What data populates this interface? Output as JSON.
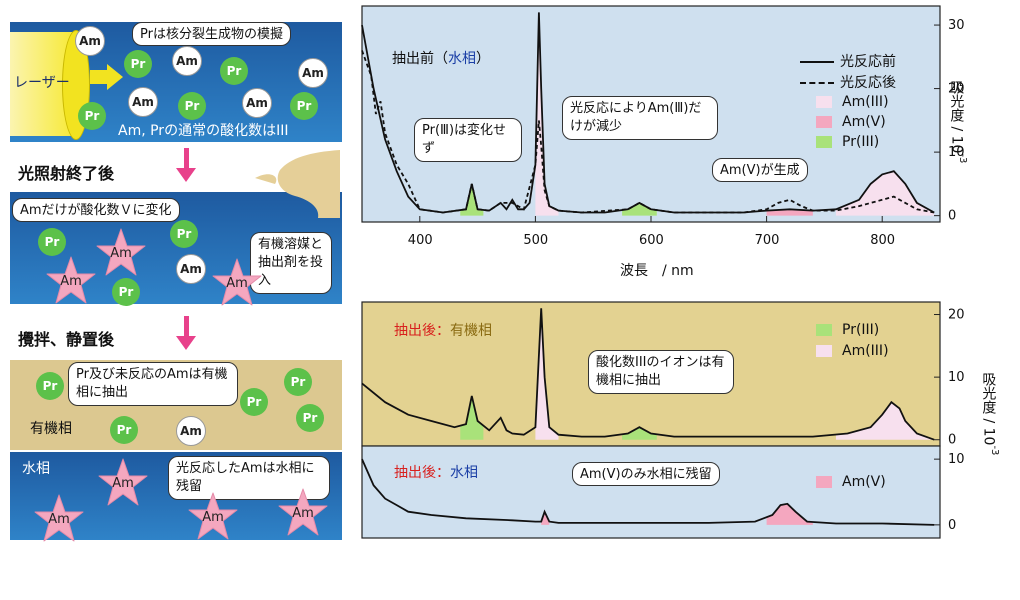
{
  "left": {
    "step1": {
      "laser_label": "レーザー",
      "note": "Prは核分裂生成物の模擬",
      "caption": "Am, Prの通常の酸化数はIII",
      "ions_pr": "Pr",
      "ions_am": "Am"
    },
    "step2": {
      "heading": "光照射終了後",
      "note": "Amだけが酸化数Ｖに変化",
      "solvent_note": "有機溶媒と抽出剤を投入"
    },
    "step3": {
      "heading": "攪拌、静置後",
      "organic_note": "Pr及び未反応のAmは有機相に抽出",
      "organic_label": "有機相",
      "aqueous_label": "水相",
      "aqueous_note": "光反応したAmは水相に残留"
    }
  },
  "top_chart": {
    "panel_title_prefix": "抽出前（",
    "panel_title_phase": "水相",
    "panel_title_suffix": "）",
    "legend": {
      "before": "光反応前",
      "after": "光反応後",
      "am3": "Am(III)",
      "am5": "Am(V)",
      "pr3": "Pr(III)"
    },
    "annot_pr": "Pr(Ⅲ)は変化せず",
    "annot_am3": "光反応によりAm(Ⅲ)だけが減少",
    "annot_am5": "Am(V)が生成",
    "xlabel": "波長　/ nm",
    "ylabel": "吸光度 / 10",
    "ylabel_exp": "-3",
    "xticks": [
      "400",
      "500",
      "600",
      "700",
      "800"
    ],
    "yticks": [
      "0",
      "10",
      "20",
      "30"
    ]
  },
  "bottom_chart": {
    "org_title_prefix": "抽出後：",
    "org_title_phase": "有機相",
    "aq_title_prefix": "抽出後：",
    "aq_title_phase": "水相",
    "legend_org": {
      "pr3": "Pr(III)",
      "am3": "Am(III)"
    },
    "legend_aq": {
      "am5": "Am(V)"
    },
    "annot_org": "酸化数IIIのイオンは有機相に抽出",
    "annot_aq": "Am(V)のみ水相に残留",
    "ylabel": "吸光度 / 10",
    "ylabel_exp": "-3",
    "yticks_org": [
      "0",
      "10",
      "20"
    ],
    "yticks_aq": [
      "0",
      "10"
    ]
  },
  "chart_data": [
    {
      "type": "line",
      "title": "抽出前（水相）",
      "xlabel": "波長 / nm",
      "ylabel": "吸光度 / 10-3",
      "xlim": [
        350,
        850
      ],
      "ylim": [
        -1,
        33
      ],
      "series": [
        {
          "name": "光反応前",
          "x": [
            350,
            360,
            370,
            380,
            390,
            400,
            420,
            440,
            445,
            450,
            460,
            470,
            475,
            480,
            485,
            490,
            495,
            500,
            503,
            505,
            508,
            512,
            520,
            540,
            560,
            580,
            590,
            600,
            620,
            650,
            680,
            700,
            720,
            740,
            760,
            780,
            790,
            800,
            810,
            820,
            830,
            845
          ],
          "y": [
            30,
            20,
            12,
            7,
            3,
            1,
            0.5,
            1,
            5,
            1,
            0.8,
            2,
            1,
            2.5,
            1,
            1,
            2,
            8,
            32,
            20,
            5,
            1.5,
            0.8,
            0.5,
            0.5,
            1,
            2,
            1,
            0.5,
            0.5,
            0.5,
            0.8,
            1,
            0.8,
            1,
            2.5,
            5,
            6.5,
            7,
            5,
            2,
            0.5
          ]
        },
        {
          "name": "光反応後",
          "x": [
            350,
            358,
            362,
            366,
            370,
            380,
            390,
            400,
            420,
            440,
            445,
            450,
            460,
            470,
            480,
            490,
            500,
            503,
            505,
            508,
            512,
            520,
            540,
            580,
            590,
            600,
            620,
            650,
            680,
            700,
            710,
            720,
            730,
            740,
            760,
            780,
            800,
            810,
            820,
            830,
            845
          ],
          "y": [
            26,
            22,
            16,
            18,
            13,
            8,
            5,
            1,
            0.5,
            1,
            5,
            1,
            0.8,
            2,
            2,
            1,
            8,
            15,
            11,
            4,
            1.5,
            0.8,
            0.5,
            1,
            2,
            1,
            0.5,
            0.5,
            0.5,
            1,
            2,
            2.5,
            1.5,
            0.8,
            0.8,
            1.5,
            2.5,
            3,
            2,
            1,
            0.5
          ]
        }
      ],
      "fills": [
        {
          "name": "Pr(III)",
          "ranges": [
            [
              435,
              455
            ],
            [
              575,
              605
            ]
          ]
        },
        {
          "name": "Am(III)",
          "ranges": [
            [
              500,
              520
            ],
            [
              760,
              845
            ]
          ]
        },
        {
          "name": "Am(V)",
          "ranges": [
            [
              700,
              740
            ]
          ]
        }
      ]
    },
    {
      "type": "line",
      "title": "抽出後：有機相",
      "ylabel": "吸光度 / 10-3",
      "xlim": [
        350,
        850
      ],
      "ylim": [
        -1,
        22
      ],
      "series": [
        {
          "name": "",
          "x": [
            350,
            370,
            390,
            410,
            430,
            440,
            445,
            450,
            460,
            470,
            475,
            480,
            490,
            500,
            505,
            508,
            512,
            520,
            540,
            560,
            580,
            590,
            600,
            620,
            650,
            700,
            740,
            770,
            790,
            800,
            808,
            815,
            820,
            830,
            845
          ],
          "y": [
            9,
            6,
            4,
            3,
            2,
            2.5,
            7,
            3,
            1.5,
            3.5,
            1.5,
            1,
            0.8,
            2,
            21,
            10,
            2,
            0.8,
            0.5,
            0.5,
            1,
            2,
            1,
            0.5,
            0.5,
            0.5,
            0.5,
            1,
            2,
            4,
            6,
            5,
            3,
            1,
            0
          ]
        }
      ],
      "fills": [
        {
          "name": "Pr(III)",
          "ranges": [
            [
              435,
              455
            ],
            [
              575,
              605
            ]
          ]
        },
        {
          "name": "Am(III)",
          "ranges": [
            [
              500,
              520
            ],
            [
              760,
              845
            ]
          ]
        }
      ]
    },
    {
      "type": "line",
      "title": "抽出後：水相",
      "ylabel": "吸光度 / 10-3",
      "xlim": [
        350,
        850
      ],
      "ylim": [
        -2,
        12
      ],
      "series": [
        {
          "name": "",
          "x": [
            350,
            360,
            370,
            380,
            390,
            410,
            440,
            480,
            500,
            505,
            508,
            512,
            520,
            560,
            600,
            650,
            690,
            705,
            712,
            718,
            725,
            735,
            760,
            800,
            845
          ],
          "y": [
            10,
            6,
            4,
            3,
            2,
            1.5,
            1,
            0.7,
            0.5,
            0.5,
            2,
            0.5,
            0.3,
            0.3,
            0.3,
            0.3,
            0.5,
            1.5,
            3,
            3.2,
            2,
            0.5,
            0.2,
            0.2,
            0
          ]
        }
      ],
      "fills": [
        {
          "name": "Am(V)",
          "ranges": [
            [
              505,
              512
            ],
            [
              700,
              740
            ]
          ]
        }
      ]
    }
  ]
}
